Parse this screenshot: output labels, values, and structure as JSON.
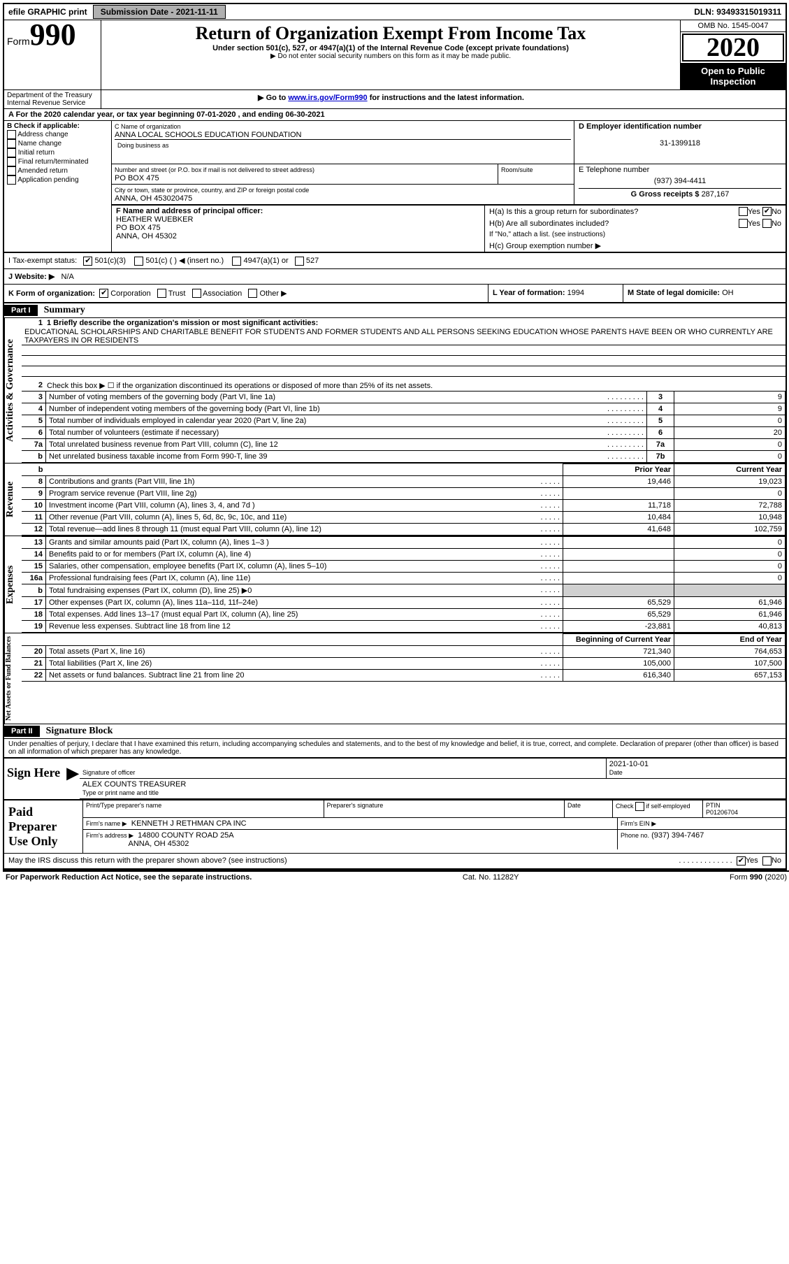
{
  "topbar": {
    "efile": "efile GRAPHIC print",
    "sub_label": "Submission Date - 2021-11-11",
    "dln": "DLN: 93493315019311"
  },
  "header": {
    "form_word": "Form",
    "form_num": "990",
    "title": "Return of Organization Exempt From Income Tax",
    "subtitle": "Under section 501(c), 527, or 4947(a)(1) of the Internal Revenue Code (except private foundations)",
    "note1": "▶ Do not enter social security numbers on this form as it may be made public.",
    "note2_pre": "▶ Go to ",
    "note2_link": "www.irs.gov/Form990",
    "note2_post": " for instructions and the latest information.",
    "omb": "OMB No. 1545-0047",
    "year": "2020",
    "open_pub1": "Open to Public",
    "open_pub2": "Inspection",
    "dept1": "Department of the Treasury",
    "dept2": "Internal Revenue Service"
  },
  "A": {
    "text": "A For the 2020 calendar year, or tax year beginning 07-01-2020    , and ending 06-30-2021"
  },
  "B": {
    "label": "B Check if applicable:",
    "opts": [
      "Address change",
      "Name change",
      "Initial return",
      "Final return/terminated",
      "Amended return",
      "Application pending"
    ]
  },
  "C": {
    "label_name": "C Name of organization",
    "name": "ANNA LOCAL SCHOOLS EDUCATION FOUNDATION",
    "dba_label": "Doing business as",
    "addr_label": "Number and street (or P.O. box if mail is not delivered to street address)",
    "room_label": "Room/suite",
    "addr": "PO BOX 475",
    "city_label": "City or town, state or province, country, and ZIP or foreign postal code",
    "city": "ANNA, OH  453020475"
  },
  "D": {
    "label": "D Employer identification number",
    "val": "31-1399118"
  },
  "E": {
    "label": "E Telephone number",
    "val": "(937) 394-4411"
  },
  "G": {
    "label": "G Gross receipts $",
    "val": "287,167"
  },
  "F": {
    "label": "F  Name and address of principal officer:",
    "name": "HEATHER WUEBKER",
    "addr": "PO BOX 475",
    "city": "ANNA, OH  45302"
  },
  "H": {
    "a": "H(a)  Is this a group return for subordinates?",
    "b": "H(b)  Are all subordinates included?",
    "b_note": "If \"No,\" attach a list. (see instructions)",
    "c": "H(c)  Group exemption number ▶",
    "yes": "Yes",
    "no": "No"
  },
  "I": {
    "label": "I  Tax-exempt status:",
    "opts": [
      "501(c)(3)",
      "501(c) (   ) ◀ (insert no.)",
      "4947(a)(1) or",
      "527"
    ]
  },
  "J": {
    "label": "J  Website: ▶",
    "val": "N/A"
  },
  "K": {
    "label": "K Form of organization:",
    "opts": [
      "Corporation",
      "Trust",
      "Association",
      "Other ▶"
    ],
    "L_label": "L Year of formation:",
    "L_val": "1994",
    "M_label": "M State of legal domicile:",
    "M_val": "OH"
  },
  "parts": {
    "p1": "Part I",
    "p1_title": "Summary",
    "p2": "Part II",
    "p2_title": "Signature Block"
  },
  "summary": {
    "line1_label": "1  Briefly describe the organization's mission or most significant activities:",
    "mission": "EDUCATIONAL SCHOLARSHIPS AND CHARITABLE BENEFIT FOR STUDENTS AND FORMER STUDENTS AND ALL PERSONS SEEKING EDUCATION WHOSE PARENTS HAVE BEEN OR WHO CURRENTLY ARE TAXPAYERS IN OR RESIDENTS",
    "line2": "Check this box ▶ ☐  if the organization discontinued its operations or disposed of more than 25% of its net assets.",
    "v_gov": "Activities & Governance",
    "v_rev": "Revenue",
    "v_exp": "Expenses",
    "v_net": "Net Assets or Fund Balances",
    "lines_gov": [
      {
        "n": "3",
        "t": "Number of voting members of the governing body (Part VI, line 1a)",
        "r": "3",
        "v": "9"
      },
      {
        "n": "4",
        "t": "Number of independent voting members of the governing body (Part VI, line 1b)",
        "r": "4",
        "v": "9"
      },
      {
        "n": "5",
        "t": "Total number of individuals employed in calendar year 2020 (Part V, line 2a)",
        "r": "5",
        "v": "0"
      },
      {
        "n": "6",
        "t": "Total number of volunteers (estimate if necessary)",
        "r": "6",
        "v": "20"
      },
      {
        "n": "7a",
        "t": "Total unrelated business revenue from Part VIII, column (C), line 12",
        "r": "7a",
        "v": "0"
      },
      {
        "n": "b",
        "t": "Net unrelated business taxable income from Form 990-T, line 39",
        "r": "7b",
        "v": "0"
      }
    ],
    "col_prior": "Prior Year",
    "col_curr": "Current Year",
    "rev": [
      {
        "n": "8",
        "t": "Contributions and grants (Part VIII, line 1h)",
        "p": "19,446",
        "c": "19,023"
      },
      {
        "n": "9",
        "t": "Program service revenue (Part VIII, line 2g)",
        "p": "",
        "c": "0"
      },
      {
        "n": "10",
        "t": "Investment income (Part VIII, column (A), lines 3, 4, and 7d )",
        "p": "11,718",
        "c": "72,788"
      },
      {
        "n": "11",
        "t": "Other revenue (Part VIII, column (A), lines 5, 6d, 8c, 9c, 10c, and 11e)",
        "p": "10,484",
        "c": "10,948"
      },
      {
        "n": "12",
        "t": "Total revenue—add lines 8 through 11 (must equal Part VIII, column (A), line 12)",
        "p": "41,648",
        "c": "102,759"
      }
    ],
    "exp": [
      {
        "n": "13",
        "t": "Grants and similar amounts paid (Part IX, column (A), lines 1–3 )",
        "p": "",
        "c": "0"
      },
      {
        "n": "14",
        "t": "Benefits paid to or for members (Part IX, column (A), line 4)",
        "p": "",
        "c": "0"
      },
      {
        "n": "15",
        "t": "Salaries, other compensation, employee benefits (Part IX, column (A), lines 5–10)",
        "p": "",
        "c": "0"
      },
      {
        "n": "16a",
        "t": "Professional fundraising fees (Part IX, column (A), line 11e)",
        "p": "",
        "c": "0"
      },
      {
        "n": "b",
        "t": "Total fundraising expenses (Part IX, column (D), line 25) ▶0",
        "p": "shade",
        "c": "shade"
      },
      {
        "n": "17",
        "t": "Other expenses (Part IX, column (A), lines 11a–11d, 11f–24e)",
        "p": "65,529",
        "c": "61,946"
      },
      {
        "n": "18",
        "t": "Total expenses. Add lines 13–17 (must equal Part IX, column (A), line 25)",
        "p": "65,529",
        "c": "61,946"
      },
      {
        "n": "19",
        "t": "Revenue less expenses. Subtract line 18 from line 12",
        "p": "-23,881",
        "c": "40,813"
      }
    ],
    "col_beg": "Beginning of Current Year",
    "col_end": "End of Year",
    "net": [
      {
        "n": "20",
        "t": "Total assets (Part X, line 16)",
        "p": "721,340",
        "c": "764,653"
      },
      {
        "n": "21",
        "t": "Total liabilities (Part X, line 26)",
        "p": "105,000",
        "c": "107,500"
      },
      {
        "n": "22",
        "t": "Net assets or fund balances. Subtract line 21 from line 20",
        "p": "616,340",
        "c": "657,153"
      }
    ]
  },
  "sig": {
    "decl": "Under penalties of perjury, I declare that I have examined this return, including accompanying schedules and statements, and to the best of my knowledge and belief, it is true, correct, and complete. Declaration of preparer (other than officer) is based on all information of which preparer has any knowledge.",
    "sign_here": "Sign Here",
    "sig_officer": "Signature of officer",
    "date_label": "Date",
    "date": "2021-10-01",
    "name": "ALEX COUNTS  TREASURER",
    "name_label": "Type or print name and title"
  },
  "prep": {
    "label": "Paid Preparer Use Only",
    "h1": "Print/Type preparer's name",
    "h2": "Preparer's signature",
    "h3": "Date",
    "h4_pre": "Check",
    "h4_post": "if self-employed",
    "h5": "PTIN",
    "ptin": "P01206704",
    "firm_label": "Firm's name   ▶",
    "firm": "KENNETH J RETHMAN CPA INC",
    "ein_label": "Firm's EIN ▶",
    "addr_label": "Firm's address ▶",
    "addr1": "14800 COUNTY ROAD 25A",
    "addr2": "ANNA, OH  45302",
    "phone_label": "Phone no.",
    "phone": "(937) 394-7467",
    "discuss": "May the IRS discuss this return with the preparer shown above? (see instructions)"
  },
  "footer": {
    "left": "For Paperwork Reduction Act Notice, see the separate instructions.",
    "mid": "Cat. No. 11282Y",
    "right": "Form 990 (2020)"
  }
}
